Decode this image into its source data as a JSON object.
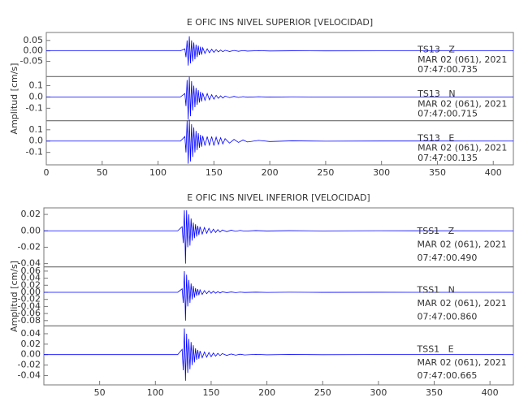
{
  "chart_data": [
    {
      "type": "line",
      "title": "E OFIC INS NIVEL SUPERIOR [VELOCIDAD]",
      "ylabel": "Amplitud [cm/s]",
      "xlim": [
        0,
        418
      ],
      "xticks": [
        0,
        50,
        100,
        150,
        200,
        250,
        300,
        350,
        400
      ],
      "x": [
        0,
        120,
        124,
        125,
        126,
        127,
        128,
        129,
        130,
        131,
        132,
        133,
        134,
        135,
        136,
        137,
        138,
        139,
        140,
        142,
        144,
        146,
        148,
        150,
        152,
        154,
        156,
        158,
        160,
        164,
        168,
        172,
        176,
        180,
        190,
        200,
        220,
        250,
        300,
        418
      ],
      "series": [
        {
          "name": "TS13   Z",
          "date": "MAR 02 (061), 2021",
          "time": "07:47:00.735",
          "color": "#0000ff",
          "ylim": [
            -0.123,
            0.088
          ],
          "yticks": [
            -0.05,
            {
              "value": 0,
              "label": "0.00"
            },
            0.05
          ],
          "values": [
            0,
            0,
            0.01,
            -0.03,
            0.05,
            -0.07,
            0.07,
            -0.06,
            0.05,
            -0.05,
            0.04,
            -0.04,
            0.03,
            -0.03,
            0.025,
            -0.02,
            0.02,
            -0.018,
            0.015,
            -0.012,
            0.01,
            -0.009,
            0.008,
            -0.007,
            0.006,
            -0.005,
            0.004,
            -0.004,
            0.003,
            -0.003,
            0.002,
            -0.002,
            0.0015,
            -0.001,
            0.001,
            -0.0005,
            0.0003,
            -0.0002,
            0.0001,
            0
          ]
        },
        {
          "name": "TS13   N",
          "date": "MAR 02 (061), 2021",
          "time": "07:47:00.715",
          "color": "#0000ff",
          "ylim": [
            -0.21,
            0.18
          ],
          "yticks": [
            -0.1,
            {
              "value": 0,
              "label": "0.0"
            },
            0.1
          ],
          "values": [
            0,
            0,
            0.03,
            -0.08,
            0.15,
            -0.2,
            0.18,
            -0.17,
            0.14,
            -0.12,
            0.1,
            -0.09,
            0.08,
            -0.07,
            0.06,
            -0.05,
            0.045,
            -0.04,
            0.035,
            -0.03,
            0.03,
            -0.025,
            0.02,
            -0.02,
            0.015,
            -0.012,
            0.01,
            -0.01,
            0.008,
            -0.006,
            0.005,
            -0.004,
            0.003,
            -0.002,
            0.002,
            -0.001,
            0.001,
            -0.0005,
            0.0002,
            0
          ]
        },
        {
          "name": "TS13   E",
          "date": "MAR 02 (061), 2021",
          "time": "07:47:00.135",
          "color": "#0000ff",
          "ylim": [
            -0.21,
            0.18
          ],
          "yticks": [
            -0.1,
            {
              "value": 0,
              "label": "0.0"
            },
            0.1
          ],
          "values": [
            0,
            0,
            0.04,
            -0.1,
            0.18,
            -0.2,
            0.19,
            -0.18,
            0.15,
            -0.14,
            0.12,
            -0.1,
            0.09,
            -0.08,
            0.07,
            -0.06,
            0.055,
            -0.05,
            0.045,
            -0.04,
            0.04,
            -0.035,
            0.04,
            -0.04,
            0.035,
            -0.03,
            0.03,
            -0.025,
            0.022,
            -0.018,
            0.015,
            -0.012,
            0.01,
            -0.008,
            0.006,
            -0.004,
            0.002,
            -0.001,
            0.0005,
            0
          ]
        }
      ]
    },
    {
      "type": "line",
      "title": "E OFIC INS NIVEL INFERIOR [VELOCIDAD]",
      "ylabel": "Amplitud [cm/s]",
      "xlim": [
        0,
        421
      ],
      "xticks": [
        50,
        100,
        150,
        200,
        250,
        300,
        350,
        400
      ],
      "x": [
        0,
        120,
        124,
        125,
        126,
        127,
        128,
        129,
        130,
        131,
        132,
        133,
        134,
        135,
        136,
        137,
        138,
        139,
        140,
        142,
        144,
        146,
        148,
        150,
        152,
        154,
        156,
        158,
        160,
        164,
        168,
        172,
        176,
        180,
        190,
        200,
        220,
        250,
        300,
        421
      ],
      "series": [
        {
          "name": "TSS1   Z",
          "date": "MAR 02 (061), 2021",
          "time": "07:47:00.490",
          "color": "#0000ff",
          "ylim": [
            -0.044,
            0.028
          ],
          "yticks": [
            -0.04,
            -0.02,
            {
              "value": 0,
              "label": "0.00"
            },
            0.02
          ],
          "values": [
            0,
            0,
            0.005,
            -0.015,
            0.025,
            -0.04,
            0.025,
            -0.02,
            0.02,
            -0.018,
            0.015,
            -0.012,
            0.01,
            -0.009,
            0.008,
            -0.007,
            0.006,
            -0.005,
            0.005,
            -0.004,
            0.004,
            -0.003,
            0.003,
            -0.0025,
            0.002,
            -0.002,
            0.0015,
            -0.0015,
            0.001,
            -0.001,
            0.0008,
            -0.0006,
            0.0005,
            -0.0004,
            0.0003,
            -0.0002,
            0.0002,
            -0.0001,
            0.0001,
            0
          ]
        },
        {
          "name": "TSS1   N",
          "date": "MAR 02 (061), 2021",
          "time": "07:47:00.860",
          "color": "#0000ff",
          "ylim": [
            -0.095,
            0.072
          ],
          "yticks": [
            -0.08,
            -0.06,
            -0.04,
            -0.02,
            {
              "value": 0,
              "label": "0.00"
            },
            0.02,
            0.04,
            0.06
          ],
          "values": [
            0,
            0,
            0.01,
            -0.03,
            0.06,
            -0.08,
            0.05,
            -0.04,
            0.035,
            -0.03,
            0.025,
            -0.02,
            0.018,
            -0.015,
            0.012,
            -0.01,
            0.009,
            -0.008,
            0.007,
            -0.006,
            0.005,
            -0.004,
            0.004,
            -0.003,
            0.003,
            -0.0025,
            0.002,
            -0.002,
            0.0015,
            -0.001,
            0.001,
            -0.0008,
            0.0006,
            -0.0005,
            0.0004,
            -0.0003,
            0.0002,
            -0.0001,
            0.0001,
            0
          ]
        },
        {
          "name": "TSS1   E",
          "date": "MAR 02 (061), 2021",
          "time": "07:47:00.665",
          "color": "#0000ff",
          "ylim": [
            -0.058,
            0.055
          ],
          "yticks": [
            -0.04,
            -0.02,
            {
              "value": 0,
              "label": "0.00"
            },
            0.02,
            0.04
          ],
          "values": [
            0,
            0,
            0.01,
            -0.03,
            0.05,
            -0.05,
            0.04,
            -0.035,
            0.03,
            -0.028,
            0.024,
            -0.02,
            0.018,
            -0.015,
            0.012,
            -0.01,
            0.009,
            -0.008,
            0.007,
            -0.006,
            0.005,
            -0.005,
            0.004,
            -0.004,
            0.003,
            -0.003,
            0.0025,
            -0.002,
            0.002,
            -0.0015,
            0.0012,
            -0.001,
            0.0008,
            -0.0006,
            0.0005,
            -0.0004,
            0.0003,
            -0.0002,
            0.0001,
            0
          ]
        }
      ]
    }
  ]
}
